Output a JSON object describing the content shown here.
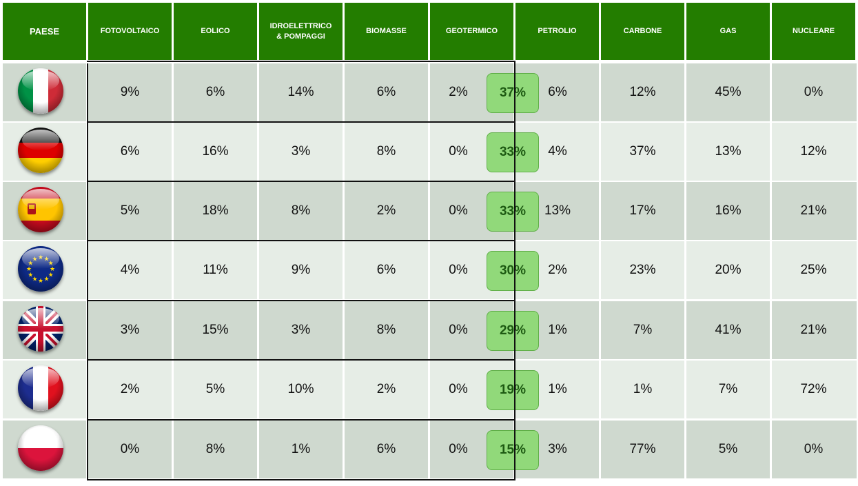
{
  "headers": {
    "paese": "PAESE",
    "fotovoltaico": "FOTOVOLTAICO",
    "eolico": "EOLICO",
    "idro_line1": "IDROELETTRICO",
    "idro_line2": "& POMPAGGI",
    "biomasse": "BIOMASSE",
    "geotermico": "GEOTERMICO",
    "petrolio": "PETROLIO",
    "carbone": "CARBONE",
    "gas": "GAS",
    "nucleare": "NUCLEARE"
  },
  "colors": {
    "header_green": "#237d00",
    "row_dark": "#cfd9cf",
    "row_light": "#e6ede6",
    "badge_green": "#91d97a",
    "badge_text": "#1d5a12"
  },
  "chart_data": {
    "type": "table",
    "columns": [
      "PAESE",
      "FOTOVOLTAICO",
      "EOLICO",
      "IDROELETTRICO & POMPAGGI",
      "BIOMASSE",
      "GEOTERMICO",
      "PETROLIO",
      "CARBONE",
      "GAS",
      "NUCLEARE"
    ],
    "rows": [
      {
        "flag": "italy-flag-icon",
        "fotovoltaico": "9%",
        "eolico": "6%",
        "idro": "14%",
        "biomasse": "6%",
        "geotermico": "2%",
        "total": "37%",
        "petrolio": "6%",
        "carbone": "12%",
        "gas": "45%",
        "nucleare": "0%"
      },
      {
        "flag": "germany-flag-icon",
        "fotovoltaico": "6%",
        "eolico": "16%",
        "idro": "3%",
        "biomasse": "8%",
        "geotermico": "0%",
        "total": "33%",
        "petrolio": "4%",
        "carbone": "37%",
        "gas": "13%",
        "nucleare": "12%"
      },
      {
        "flag": "spain-flag-icon",
        "fotovoltaico": "5%",
        "eolico": "18%",
        "idro": "8%",
        "biomasse": "2%",
        "geotermico": "0%",
        "total": "33%",
        "petrolio": "13%",
        "carbone": "17%",
        "gas": "16%",
        "nucleare": "21%"
      },
      {
        "flag": "eu-flag-icon",
        "fotovoltaico": "4%",
        "eolico": "11%",
        "idro": "9%",
        "biomasse": "6%",
        "geotermico": "0%",
        "total": "30%",
        "petrolio": "2%",
        "carbone": "23%",
        "gas": "20%",
        "nucleare": "25%"
      },
      {
        "flag": "uk-flag-icon",
        "fotovoltaico": "3%",
        "eolico": "15%",
        "idro": "3%",
        "biomasse": "8%",
        "geotermico": "0%",
        "total": "29%",
        "petrolio": "1%",
        "carbone": "7%",
        "gas": "41%",
        "nucleare": "21%"
      },
      {
        "flag": "france-flag-icon",
        "fotovoltaico": "2%",
        "eolico": "5%",
        "idro": "10%",
        "biomasse": "2%",
        "geotermico": "0%",
        "total": "19%",
        "petrolio": "1%",
        "carbone": "1%",
        "gas": "7%",
        "nucleare": "72%"
      },
      {
        "flag": "poland-flag-icon",
        "fotovoltaico": "0%",
        "eolico": "8%",
        "idro": "1%",
        "biomasse": "6%",
        "geotermico": "0%",
        "total": "15%",
        "petrolio": "3%",
        "carbone": "77%",
        "gas": "5%",
        "nucleare": "0%"
      }
    ]
  }
}
